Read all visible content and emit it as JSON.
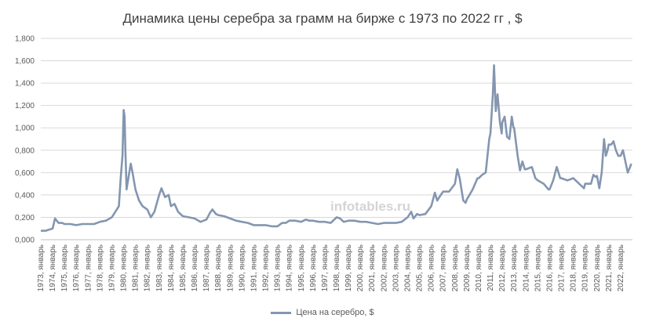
{
  "chart_data": {
    "type": "line",
    "title": "Динамика цены серебра за грамм на бирже с 1973 по 2022 гг , $",
    "xlabel": "",
    "ylabel": "",
    "ylim": [
      0,
      1.8
    ],
    "y_ticks": [
      "0,000",
      "0,200",
      "0,400",
      "0,600",
      "0,800",
      "1,000",
      "1,200",
      "1,400",
      "1,600",
      "1,800"
    ],
    "x_ticks": [
      "1973, январь",
      "1974, январь",
      "1975, январь",
      "1976, январь",
      "1977, январь",
      "1978, январь",
      "1979, январь",
      "1980, январь",
      "1981, январь",
      "1982, январь",
      "1983, январь",
      "1984, январь",
      "1985, январь",
      "1986, январь",
      "1987, январь",
      "1988, январь",
      "1989, январь",
      "1990, январь",
      "1991, январь",
      "1992, январь",
      "1993, январь",
      "1994, январь",
      "1995, январь",
      "1996, январь",
      "1997, январь",
      "1998, январь",
      "1999, январь",
      "2000, январь",
      "2001, январь",
      "2002, январь",
      "2003, январь",
      "2004, январь",
      "2005, январь",
      "2006, январь",
      "2007, январь",
      "2008, январь",
      "2009, январь",
      "2010, январь",
      "2011, январь",
      "2012, январь",
      "2013, январь",
      "2014, январь",
      "2015, январь",
      "2016, январь",
      "2017, январь",
      "2018, январь",
      "2019, январь",
      "2020, январь",
      "2021, январь",
      "2022, январь"
    ],
    "grid": true,
    "legend_position": "bottom",
    "series": [
      {
        "name": "Цена на серебро, $",
        "color": "#8496b0",
        "points": [
          [
            1973.0,
            0.08
          ],
          [
            1973.4,
            0.08
          ],
          [
            1973.7,
            0.09
          ],
          [
            1974.0,
            0.1
          ],
          [
            1974.2,
            0.19
          ],
          [
            1974.5,
            0.15
          ],
          [
            1974.8,
            0.15
          ],
          [
            1975.0,
            0.14
          ],
          [
            1975.5,
            0.14
          ],
          [
            1976.0,
            0.13
          ],
          [
            1976.5,
            0.14
          ],
          [
            1977.0,
            0.14
          ],
          [
            1977.5,
            0.14
          ],
          [
            1978.0,
            0.16
          ],
          [
            1978.5,
            0.17
          ],
          [
            1979.0,
            0.2
          ],
          [
            1979.3,
            0.25
          ],
          [
            1979.6,
            0.3
          ],
          [
            1979.75,
            0.55
          ],
          [
            1979.9,
            0.75
          ],
          [
            1980.0,
            1.16
          ],
          [
            1980.08,
            1.1
          ],
          [
            1980.15,
            0.8
          ],
          [
            1980.25,
            0.45
          ],
          [
            1980.4,
            0.55
          ],
          [
            1980.6,
            0.68
          ],
          [
            1980.75,
            0.6
          ],
          [
            1981.0,
            0.45
          ],
          [
            1981.3,
            0.35
          ],
          [
            1981.6,
            0.3
          ],
          [
            1982.0,
            0.27
          ],
          [
            1982.3,
            0.2
          ],
          [
            1982.6,
            0.25
          ],
          [
            1983.0,
            0.4
          ],
          [
            1983.2,
            0.46
          ],
          [
            1983.5,
            0.38
          ],
          [
            1983.8,
            0.4
          ],
          [
            1984.0,
            0.3
          ],
          [
            1984.3,
            0.32
          ],
          [
            1984.6,
            0.25
          ],
          [
            1985.0,
            0.21
          ],
          [
            1985.5,
            0.2
          ],
          [
            1986.0,
            0.19
          ],
          [
            1986.5,
            0.16
          ],
          [
            1987.0,
            0.18
          ],
          [
            1987.3,
            0.24
          ],
          [
            1987.5,
            0.27
          ],
          [
            1987.8,
            0.23
          ],
          [
            1988.0,
            0.22
          ],
          [
            1988.5,
            0.21
          ],
          [
            1989.0,
            0.19
          ],
          [
            1989.5,
            0.17
          ],
          [
            1990.0,
            0.16
          ],
          [
            1990.5,
            0.15
          ],
          [
            1991.0,
            0.13
          ],
          [
            1991.5,
            0.13
          ],
          [
            1992.0,
            0.13
          ],
          [
            1992.5,
            0.12
          ],
          [
            1993.0,
            0.12
          ],
          [
            1993.4,
            0.15
          ],
          [
            1993.7,
            0.15
          ],
          [
            1994.0,
            0.17
          ],
          [
            1994.5,
            0.17
          ],
          [
            1995.0,
            0.16
          ],
          [
            1995.4,
            0.18
          ],
          [
            1995.7,
            0.17
          ],
          [
            1996.0,
            0.17
          ],
          [
            1996.5,
            0.16
          ],
          [
            1997.0,
            0.16
          ],
          [
            1997.5,
            0.15
          ],
          [
            1998.0,
            0.2
          ],
          [
            1998.3,
            0.19
          ],
          [
            1998.6,
            0.16
          ],
          [
            1999.0,
            0.17
          ],
          [
            1999.5,
            0.17
          ],
          [
            2000.0,
            0.16
          ],
          [
            2000.5,
            0.16
          ],
          [
            2001.0,
            0.15
          ],
          [
            2001.5,
            0.14
          ],
          [
            2002.0,
            0.15
          ],
          [
            2002.5,
            0.15
          ],
          [
            2003.0,
            0.15
          ],
          [
            2003.5,
            0.16
          ],
          [
            2004.0,
            0.2
          ],
          [
            2004.3,
            0.25
          ],
          [
            2004.5,
            0.19
          ],
          [
            2004.8,
            0.23
          ],
          [
            2005.0,
            0.22
          ],
          [
            2005.5,
            0.23
          ],
          [
            2006.0,
            0.3
          ],
          [
            2006.3,
            0.42
          ],
          [
            2006.5,
            0.35
          ],
          [
            2006.8,
            0.4
          ],
          [
            2007.0,
            0.43
          ],
          [
            2007.5,
            0.43
          ],
          [
            2008.0,
            0.5
          ],
          [
            2008.2,
            0.63
          ],
          [
            2008.4,
            0.55
          ],
          [
            2008.7,
            0.35
          ],
          [
            2008.9,
            0.33
          ],
          [
            2009.0,
            0.36
          ],
          [
            2009.5,
            0.45
          ],
          [
            2009.9,
            0.55
          ],
          [
            2010.0,
            0.55
          ],
          [
            2010.3,
            0.58
          ],
          [
            2010.6,
            0.6
          ],
          [
            2010.9,
            0.9
          ],
          [
            2011.0,
            0.95
          ],
          [
            2011.2,
            1.3
          ],
          [
            2011.3,
            1.56
          ],
          [
            2011.45,
            1.15
          ],
          [
            2011.6,
            1.3
          ],
          [
            2011.8,
            1.05
          ],
          [
            2011.95,
            0.95
          ],
          [
            2012.0,
            1.05
          ],
          [
            2012.2,
            1.1
          ],
          [
            2012.4,
            0.92
          ],
          [
            2012.6,
            0.9
          ],
          [
            2012.8,
            1.1
          ],
          [
            2012.95,
            1.0
          ],
          [
            2013.0,
            1.0
          ],
          [
            2013.3,
            0.75
          ],
          [
            2013.5,
            0.62
          ],
          [
            2013.7,
            0.7
          ],
          [
            2013.9,
            0.63
          ],
          [
            2014.0,
            0.63
          ],
          [
            2014.5,
            0.65
          ],
          [
            2014.8,
            0.55
          ],
          [
            2015.0,
            0.53
          ],
          [
            2015.5,
            0.5
          ],
          [
            2015.9,
            0.45
          ],
          [
            2016.0,
            0.45
          ],
          [
            2016.3,
            0.53
          ],
          [
            2016.6,
            0.65
          ],
          [
            2016.9,
            0.55
          ],
          [
            2017.0,
            0.55
          ],
          [
            2017.5,
            0.53
          ],
          [
            2018.0,
            0.55
          ],
          [
            2018.5,
            0.5
          ],
          [
            2018.9,
            0.46
          ],
          [
            2019.0,
            0.5
          ],
          [
            2019.5,
            0.5
          ],
          [
            2019.7,
            0.58
          ],
          [
            2019.9,
            0.56
          ],
          [
            2020.0,
            0.57
          ],
          [
            2020.2,
            0.46
          ],
          [
            2020.4,
            0.6
          ],
          [
            2020.6,
            0.9
          ],
          [
            2020.75,
            0.75
          ],
          [
            2020.9,
            0.8
          ],
          [
            2021.0,
            0.85
          ],
          [
            2021.2,
            0.85
          ],
          [
            2021.4,
            0.88
          ],
          [
            2021.6,
            0.8
          ],
          [
            2021.8,
            0.75
          ],
          [
            2022.0,
            0.75
          ],
          [
            2022.2,
            0.8
          ],
          [
            2022.4,
            0.7
          ],
          [
            2022.6,
            0.6
          ],
          [
            2022.8,
            0.65
          ],
          [
            2022.9,
            0.68
          ]
        ]
      }
    ]
  },
  "watermark": "infotables.ru"
}
